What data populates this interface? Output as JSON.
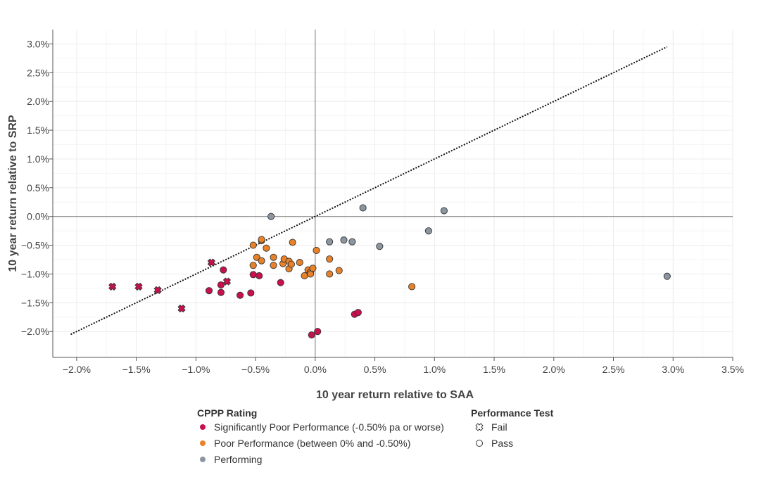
{
  "chart_data": {
    "type": "scatter",
    "xlabel": "10 year return relative to SAA",
    "ylabel": "10 year return relative to SRP",
    "xlim": [
      -2.2,
      3.5
    ],
    "ylim": [
      -2.45,
      3.25
    ],
    "x_ticks": [
      -2.0,
      -1.5,
      -1.0,
      -0.5,
      0.0,
      0.5,
      1.0,
      1.5,
      2.0,
      2.5,
      3.0,
      3.5
    ],
    "y_ticks": [
      -2.0,
      -1.5,
      -1.0,
      -0.5,
      0.0,
      0.5,
      1.0,
      1.5,
      2.0,
      2.5,
      3.0
    ],
    "x_tick_labels": [
      "−2.0%",
      "−1.5%",
      "−1.0%",
      "−0.5%",
      "0.0%",
      "0.5%",
      "1.0%",
      "1.5%",
      "2.0%",
      "2.5%",
      "3.0%",
      "3.5%"
    ],
    "y_tick_labels": [
      "−2.0%",
      "−1.5%",
      "−1.0%",
      "−0.5%",
      "0.0%",
      "0.5%",
      "1.0%",
      "1.5%",
      "2.0%",
      "2.5%",
      "3.0%"
    ],
    "grid": true,
    "reference_line": {
      "style": "dotted",
      "from": [
        -2.05,
        -2.05
      ],
      "to": [
        2.95,
        2.95
      ]
    },
    "colors": {
      "significantly_poor": "#c8104e",
      "poor": "#e8822a",
      "performing": "#8c96a0"
    },
    "legend": {
      "placement": "bottom",
      "rating_title": "CPPP Rating",
      "rating_entries": [
        {
          "key": "significantly_poor",
          "label": "Significantly Poor Performance (-0.50% pa or worse)"
        },
        {
          "key": "poor",
          "label": "Poor Performance (between 0% and -0.50%)"
        },
        {
          "key": "performing",
          "label": "Performing"
        }
      ],
      "test_title": "Performance Test",
      "test_entries": [
        {
          "key": "fail",
          "label": "Fail"
        },
        {
          "key": "pass",
          "label": "Pass"
        }
      ]
    },
    "series": [
      {
        "rating": "significantly_poor",
        "test": "fail",
        "points": [
          [
            -1.7,
            -1.22
          ],
          [
            -1.48,
            -1.22
          ],
          [
            -1.32,
            -1.28
          ],
          [
            -1.12,
            -1.6
          ],
          [
            -0.87,
            -0.8
          ],
          [
            -0.74,
            -1.13
          ]
        ]
      },
      {
        "rating": "significantly_poor",
        "test": "pass",
        "points": [
          [
            -0.89,
            -1.29
          ],
          [
            -0.79,
            -1.19
          ],
          [
            -0.79,
            -1.32
          ],
          [
            -0.77,
            -0.93
          ],
          [
            -0.63,
            -1.37
          ],
          [
            -0.54,
            -1.33
          ],
          [
            -0.52,
            -1.01
          ],
          [
            -0.47,
            -1.03
          ],
          [
            -0.29,
            -1.15
          ],
          [
            -0.03,
            -2.06
          ],
          [
            0.02,
            -2.0
          ],
          [
            0.33,
            -1.7
          ],
          [
            0.36,
            -1.67
          ]
        ]
      },
      {
        "rating": "poor",
        "test": "pass",
        "points": [
          [
            -0.52,
            -0.5
          ],
          [
            -0.52,
            -0.85
          ],
          [
            -0.49,
            -0.71
          ],
          [
            -0.45,
            -0.77
          ],
          [
            -0.45,
            -0.42
          ],
          [
            -0.45,
            -0.4
          ],
          [
            -0.41,
            -0.55
          ],
          [
            -0.35,
            -0.85
          ],
          [
            -0.35,
            -0.71
          ],
          [
            -0.27,
            -0.82
          ],
          [
            -0.26,
            -0.74
          ],
          [
            -0.22,
            -0.91
          ],
          [
            -0.22,
            -0.78
          ],
          [
            -0.2,
            -0.83
          ],
          [
            -0.19,
            -0.45
          ],
          [
            -0.13,
            -0.8
          ],
          [
            -0.09,
            -1.03
          ],
          [
            -0.06,
            -0.93
          ],
          [
            -0.04,
            -0.97
          ],
          [
            -0.04,
            -1.0
          ],
          [
            -0.02,
            -0.9
          ],
          [
            0.01,
            -0.59
          ],
          [
            0.12,
            -0.74
          ],
          [
            0.12,
            -1.0
          ],
          [
            0.2,
            -0.94
          ],
          [
            0.81,
            -1.22
          ]
        ]
      },
      {
        "rating": "performing",
        "test": "pass",
        "points": [
          [
            -0.37,
            0.0
          ],
          [
            0.12,
            -0.44
          ],
          [
            0.24,
            -0.41
          ],
          [
            0.31,
            -0.44
          ],
          [
            0.4,
            0.15
          ],
          [
            0.54,
            -0.52
          ],
          [
            0.95,
            -0.25
          ],
          [
            1.08,
            0.1
          ],
          [
            2.95,
            -1.04
          ]
        ]
      }
    ]
  }
}
